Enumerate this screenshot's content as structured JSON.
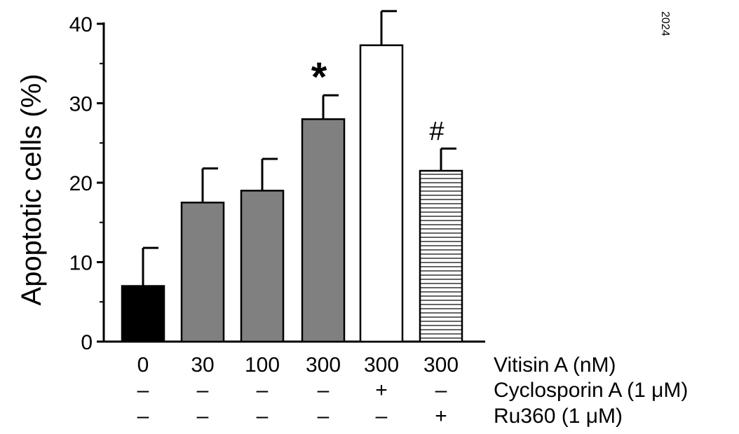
{
  "chart_data": {
    "type": "bar",
    "ylabel": "Apoptotic cells (%)",
    "ylim": [
      0,
      40
    ],
    "yticks": [
      0,
      10,
      20,
      30,
      40
    ],
    "grid": false,
    "side_text": "2024",
    "categories": [
      "0",
      "30",
      "100",
      "300",
      "300",
      "300"
    ],
    "values": [
      7,
      17.5,
      19,
      28,
      37.3,
      21.5
    ],
    "errors": [
      4.8,
      4.3,
      4.0,
      3.0,
      4.3,
      2.8
    ],
    "fills": [
      "#000000",
      "#808080",
      "#808080",
      "#808080",
      "#ffffff",
      "hatch"
    ],
    "annotations": [
      "",
      "",
      "",
      "*",
      "",
      "#"
    ],
    "condition_rows": [
      {
        "label": "Vitisin A (nM)",
        "values": [
          "0",
          "30",
          "100",
          "300",
          "300",
          "300"
        ]
      },
      {
        "label": "Cyclosporin A (1 μM)",
        "values": [
          "–",
          "–",
          "–",
          "–",
          "+",
          "–"
        ]
      },
      {
        "label": "Ru360 (1 μM)",
        "values": [
          "–",
          "–",
          "–",
          "–",
          "–",
          "+"
        ]
      }
    ]
  }
}
